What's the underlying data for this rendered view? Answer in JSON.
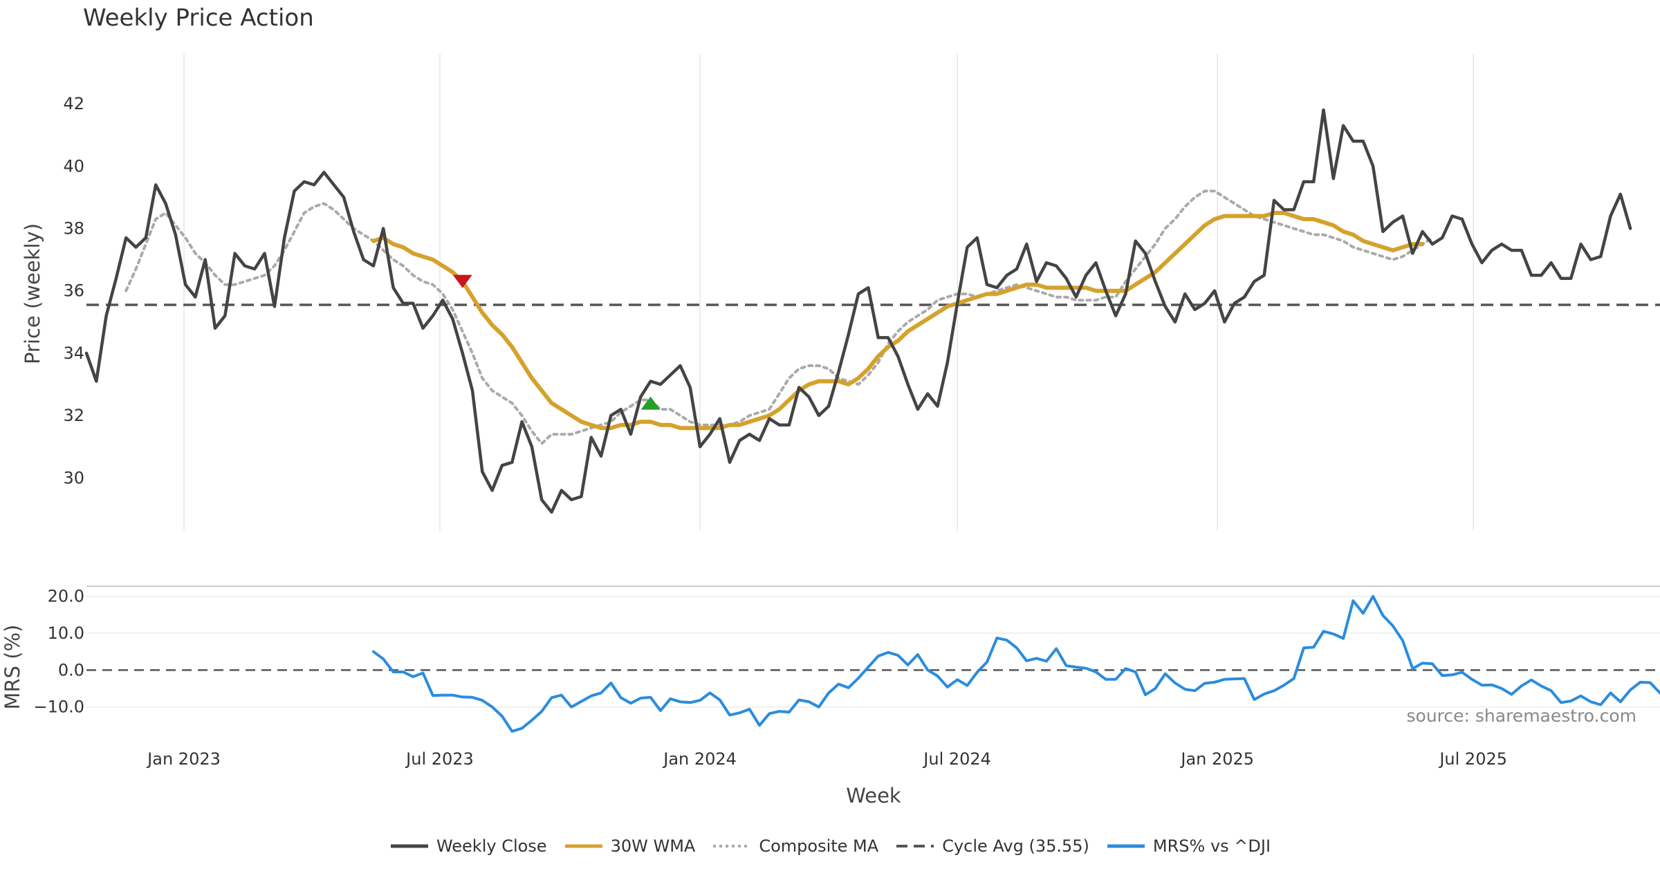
{
  "title": "Weekly Price Action",
  "colors": {
    "close": "#444444",
    "wma": "#D4A22C",
    "composite": "#AAAAAA",
    "cycle": "#555555",
    "mrs": "#2B8CDE",
    "sell_marker": "#C8161D",
    "buy_marker": "#22A02A",
    "source": "#888888"
  },
  "legend": [
    {
      "key": "close",
      "label": "Weekly Close",
      "style": "solid"
    },
    {
      "key": "wma",
      "label": "30W WMA",
      "style": "solid"
    },
    {
      "key": "composite",
      "label": "Composite MA",
      "style": "dotted"
    },
    {
      "key": "cycle",
      "label": "Cycle Avg (35.55)",
      "style": "dashed"
    },
    {
      "key": "mrs",
      "label": "MRS% vs ^DJI",
      "style": "solid"
    }
  ],
  "source_text": "source: sharemaestro.com",
  "chart_data": [
    {
      "type": "line",
      "title": "Weekly Price Action",
      "ylabel": "Price (weekly)",
      "xlim": [
        "2022-10-24",
        "2025-11-10"
      ],
      "ylim": [
        28.3,
        43.0
      ],
      "yticks": [
        30,
        32,
        34,
        36,
        38,
        40,
        42
      ],
      "xticks": [
        {
          "date": "2023-01-01",
          "label": "Jan 2023"
        },
        {
          "date": "2023-07-01",
          "label": "Jul 2023"
        },
        {
          "date": "2024-01-01",
          "label": "Jan 2024"
        },
        {
          "date": "2024-07-01",
          "label": "Jul 2024"
        },
        {
          "date": "2025-01-01",
          "label": "Jan 2025"
        },
        {
          "date": "2025-07-01",
          "label": "Jul 2025"
        }
      ],
      "grid": "vertical",
      "start_date": "2022-10-24",
      "series": [
        {
          "name": "Weekly Close",
          "key": "close",
          "values": [
            34.0,
            33.1,
            35.2,
            36.4,
            37.7,
            37.4,
            37.7,
            39.4,
            38.8,
            37.8,
            36.2,
            35.8,
            37.0,
            34.8,
            35.2,
            37.2,
            36.8,
            36.7,
            37.2,
            35.5,
            37.7,
            39.2,
            39.5,
            39.4,
            39.8,
            39.4,
            39.0,
            37.9,
            37.0,
            36.8,
            38.0,
            36.1,
            35.6,
            35.6,
            34.8,
            35.2,
            35.7,
            35.1,
            34.0,
            32.8,
            30.2,
            29.6,
            30.4,
            30.5,
            31.8,
            31.0,
            29.3,
            28.9,
            29.6,
            29.3,
            29.4,
            31.3,
            30.7,
            32.0,
            32.2,
            31.4,
            32.6,
            33.1,
            33.0,
            33.3,
            33.6,
            32.9,
            31.0,
            31.4,
            31.9,
            30.5,
            31.2,
            31.4,
            31.2,
            31.9,
            31.7,
            31.7,
            32.9,
            32.6,
            32.0,
            32.3,
            33.4,
            34.6,
            35.9,
            36.1,
            34.5,
            34.5,
            33.9,
            33.0,
            32.2,
            32.7,
            32.3,
            33.7,
            35.6,
            37.4,
            37.7,
            36.2,
            36.1,
            36.5,
            36.7,
            37.5,
            36.3,
            36.9,
            36.8,
            36.4,
            35.8,
            36.5,
            36.9,
            36.0,
            35.2,
            35.9,
            37.6,
            37.2,
            36.3,
            35.5,
            35.0,
            35.9,
            35.4,
            35.6,
            36.0,
            35.0,
            35.6,
            35.8,
            36.3,
            36.5,
            38.9,
            38.6,
            38.6,
            39.5,
            39.5,
            41.8,
            39.6,
            41.3,
            40.8,
            40.8,
            40.0,
            37.9,
            38.2,
            38.4,
            37.2,
            37.9,
            37.5,
            37.7,
            38.4,
            38.3,
            37.5,
            36.9,
            37.3,
            37.5,
            37.3,
            37.3,
            36.5,
            36.5,
            36.9,
            36.4,
            36.4,
            37.5,
            37.0,
            37.1,
            38.4,
            39.1,
            38.0
          ]
        },
        {
          "name": "30W WMA",
          "key": "wma",
          "start_index": 29,
          "values": [
            37.6,
            37.7,
            37.5,
            37.4,
            37.2,
            37.1,
            37.0,
            36.8,
            36.6,
            36.3,
            35.8,
            35.3,
            34.9,
            34.6,
            34.2,
            33.7,
            33.2,
            32.8,
            32.4,
            32.2,
            32.0,
            31.8,
            31.7,
            31.6,
            31.6,
            31.7,
            31.7,
            31.8,
            31.8,
            31.7,
            31.7,
            31.6,
            31.6,
            31.6,
            31.6,
            31.6,
            31.7,
            31.7,
            31.8,
            31.9,
            32.0,
            32.2,
            32.5,
            32.8,
            33.0,
            33.1,
            33.1,
            33.1,
            33.0,
            33.2,
            33.5,
            33.9,
            34.2,
            34.4,
            34.7,
            34.9,
            35.1,
            35.3,
            35.5,
            35.6,
            35.7,
            35.8,
            35.9,
            35.9,
            36.0,
            36.1,
            36.2,
            36.2,
            36.1,
            36.1,
            36.1,
            36.1,
            36.1,
            36.0,
            36.0,
            36.0,
            36.0,
            36.2,
            36.4,
            36.6,
            36.9,
            37.2,
            37.5,
            37.8,
            38.1,
            38.3,
            38.4,
            38.4,
            38.4,
            38.4,
            38.4,
            38.5,
            38.5,
            38.4,
            38.3,
            38.3,
            38.2,
            38.1,
            37.9,
            37.8,
            37.6,
            37.5,
            37.4,
            37.3,
            37.4,
            37.5,
            37.5
          ]
        },
        {
          "name": "Composite MA",
          "key": "composite",
          "start_index": 4,
          "values": [
            36.0,
            36.7,
            37.5,
            38.3,
            38.5,
            38.1,
            37.7,
            37.2,
            36.9,
            36.5,
            36.2,
            36.2,
            36.3,
            36.4,
            36.5,
            36.8,
            37.3,
            37.9,
            38.5,
            38.7,
            38.8,
            38.6,
            38.3,
            38.0,
            37.8,
            37.6,
            37.3,
            37.0,
            36.8,
            36.5,
            36.3,
            36.2,
            35.9,
            35.4,
            34.7,
            34.0,
            33.2,
            32.8,
            32.6,
            32.4,
            32.0,
            31.5,
            31.1,
            31.4,
            31.4,
            31.4,
            31.5,
            31.6,
            31.7,
            31.8,
            32.1,
            32.3,
            32.5,
            32.5,
            32.2,
            32.2,
            32.0,
            31.8,
            31.7,
            31.7,
            31.7,
            31.7,
            31.8,
            32.0,
            32.1,
            32.2,
            32.7,
            33.2,
            33.5,
            33.6,
            33.6,
            33.5,
            33.2,
            33.1,
            33.0,
            33.3,
            33.7,
            34.3,
            34.7,
            35.0,
            35.2,
            35.4,
            35.7,
            35.8,
            35.9,
            35.9,
            35.8,
            35.9,
            36.0,
            36.1,
            36.2,
            36.1,
            36.0,
            35.9,
            35.8,
            35.8,
            35.7,
            35.7,
            35.7,
            35.8,
            35.8,
            36.3,
            36.7,
            37.1,
            37.5,
            38.0,
            38.3,
            38.7,
            39.0,
            39.2,
            39.2,
            39.0,
            38.8,
            38.6,
            38.4,
            38.3,
            38.2,
            38.1,
            38.0,
            37.9,
            37.8,
            37.8,
            37.7,
            37.6,
            37.4,
            37.3,
            37.2,
            37.1,
            37.0,
            37.1,
            37.3,
            37.5,
            37.7
          ]
        },
        {
          "name": "Cycle Avg (35.55)",
          "key": "cycle",
          "constant": 35.55
        }
      ],
      "markers": [
        {
          "type": "sell",
          "date": "2023-07-17",
          "y": 36.3
        },
        {
          "type": "buy",
          "date": "2023-11-27",
          "y": 32.4
        }
      ]
    },
    {
      "type": "line",
      "ylabel": "MRS (%)",
      "xlabel": "Week",
      "xlim": [
        "2022-10-24",
        "2025-11-10"
      ],
      "ylim": [
        -17,
        22
      ],
      "yticks": [
        {
          "v": 20,
          "label": "20.0"
        },
        {
          "v": 10,
          "label": "10.0"
        },
        {
          "v": 0,
          "label": "0.0"
        },
        {
          "v": -10,
          "label": "−10.0"
        }
      ],
      "zero_line": 0,
      "series": [
        {
          "name": "MRS% vs ^DJI",
          "key": "mrs",
          "start_index": 29,
          "values": [
            5.0,
            3.0,
            -0.5,
            -0.5,
            -1.8,
            -0.8,
            -6.9,
            -6.8,
            -6.8,
            -7.3,
            -7.4,
            -8.2,
            -10.0,
            -12.5,
            -16.6,
            -15.8,
            -13.6,
            -11.2,
            -7.5,
            -6.8,
            -10.0,
            -8.5,
            -7.0,
            -6.2,
            -3.5,
            -7.5,
            -9.0,
            -7.6,
            -7.4,
            -11.0,
            -7.8,
            -8.6,
            -8.8,
            -8.2,
            -6.2,
            -8.1,
            -12.2,
            -11.6,
            -10.6,
            -15.0,
            -11.8,
            -11.2,
            -11.4,
            -8.1,
            -8.6,
            -10.0,
            -6.2,
            -3.8,
            -4.8,
            -2.2,
            0.8,
            3.8,
            4.8,
            4.0,
            1.4,
            4.2,
            0.0,
            -1.6,
            -4.6,
            -2.6,
            -4.2,
            -0.6,
            2.2,
            8.7,
            8.1,
            6.0,
            2.5,
            3.2,
            2.4,
            5.8,
            1.2,
            0.8,
            0.5,
            -0.5,
            -2.5,
            -2.5,
            0.4,
            -0.5,
            -6.7,
            -5.0,
            -1.0,
            -3.5,
            -5.2,
            -5.6,
            -3.6,
            -3.3,
            -2.5,
            -2.4,
            -2.3,
            -8.0,
            -6.5,
            -5.6,
            -4.1,
            -2.3,
            6.0,
            6.2,
            10.5,
            9.8,
            8.6,
            18.8,
            15.4,
            20.0,
            14.8,
            12.0,
            8.0,
            0.4,
            1.9,
            1.7,
            -1.5,
            -1.3,
            -0.6,
            -2.5,
            -4.1,
            -4.0,
            -5.0,
            -6.6,
            -4.3,
            -2.7,
            -4.3,
            -5.6,
            -8.8,
            -8.4,
            -7.0,
            -8.6,
            -9.4,
            -6.2,
            -8.6,
            -5.4,
            -3.3,
            -3.4,
            -6.2
          ]
        }
      ]
    }
  ]
}
